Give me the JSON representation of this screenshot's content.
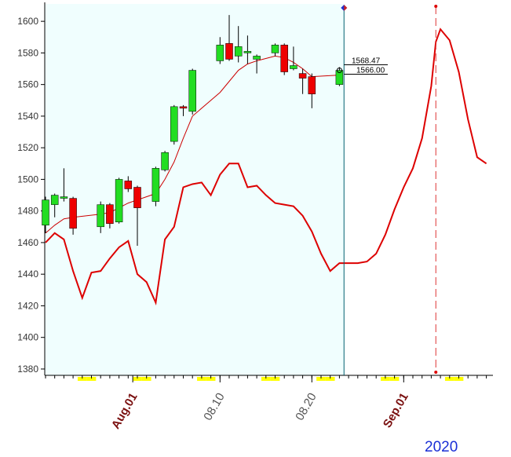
{
  "year_label": "2020",
  "colors": {
    "plot_bg": "#f0fefe",
    "up": "#22dd22",
    "down": "#ee0000",
    "line": "#dd0000",
    "ma": "#cc0000",
    "cursor": "#006070",
    "highlight": "#ffff00",
    "date_label": "#7a1010",
    "day_label": "#555555"
  },
  "chart_data": {
    "type": "candlestick",
    "ylim": [
      1376,
      1611
    ],
    "yticks": [
      1380,
      1400,
      1420,
      1440,
      1460,
      1480,
      1500,
      1520,
      1540,
      1560,
      1580,
      1600
    ],
    "grid": false,
    "x_range": [
      0,
      48
    ],
    "xticks": [
      {
        "label": "Aug.01",
        "x": 9.5,
        "style": "month"
      },
      {
        "label": "08.10",
        "x": 19,
        "style": "day"
      },
      {
        "label": "08.20",
        "x": 29,
        "style": "day"
      },
      {
        "label": "Sep.01",
        "x": 39,
        "style": "month"
      }
    ],
    "highlighted_ticks": [
      4,
      5,
      10,
      11,
      17,
      18,
      24,
      25,
      30,
      31,
      37,
      38,
      44,
      45
    ],
    "cursor_x": 32.5,
    "projection_x": 42.5,
    "value_labels": [
      "1568.47",
      "1566.00"
    ],
    "candles": [
      {
        "x": 0,
        "o": 1471,
        "h": 1489,
        "l": 1466,
        "c": 1487
      },
      {
        "x": 1,
        "o": 1484,
        "h": 1491,
        "l": 1476,
        "c": 1490
      },
      {
        "x": 2,
        "o": 1488,
        "h": 1507,
        "l": 1486,
        "c": 1489
      },
      {
        "x": 3,
        "o": 1488,
        "h": 1489,
        "l": 1465,
        "c": 1469
      },
      {
        "x": 6,
        "o": 1470,
        "h": 1486,
        "l": 1466,
        "c": 1484
      },
      {
        "x": 7,
        "o": 1484,
        "h": 1485,
        "l": 1469,
        "c": 1472
      },
      {
        "x": 8,
        "o": 1473,
        "h": 1501,
        "l": 1472,
        "c": 1500
      },
      {
        "x": 9,
        "o": 1499,
        "h": 1502,
        "l": 1492,
        "c": 1494
      },
      {
        "x": 10,
        "o": 1495,
        "h": 1496,
        "l": 1458,
        "c": 1482
      },
      {
        "x": 12,
        "o": 1486,
        "h": 1508,
        "l": 1483,
        "c": 1507
      },
      {
        "x": 13,
        "o": 1506,
        "h": 1518,
        "l": 1505,
        "c": 1517
      },
      {
        "x": 14,
        "o": 1524,
        "h": 1547,
        "l": 1522,
        "c": 1546
      },
      {
        "x": 15,
        "o": 1546,
        "h": 1547,
        "l": 1540,
        "c": 1545
      },
      {
        "x": 16,
        "o": 1543,
        "h": 1570,
        "l": 1541,
        "c": 1569
      },
      {
        "x": 19,
        "o": 1575,
        "h": 1590,
        "l": 1573,
        "c": 1585
      },
      {
        "x": 20,
        "o": 1586,
        "h": 1604,
        "l": 1575,
        "c": 1576
      },
      {
        "x": 21,
        "o": 1578,
        "h": 1597,
        "l": 1574,
        "c": 1584
      },
      {
        "x": 22,
        "o": 1580,
        "h": 1591,
        "l": 1573,
        "c": 1581
      },
      {
        "x": 23,
        "o": 1576,
        "h": 1579,
        "l": 1567,
        "c": 1578
      },
      {
        "x": 25,
        "o": 1580,
        "h": 1586,
        "l": 1578,
        "c": 1585
      },
      {
        "x": 26,
        "o": 1585,
        "h": 1586,
        "l": 1566,
        "c": 1568
      },
      {
        "x": 27,
        "o": 1570,
        "h": 1584,
        "l": 1569,
        "c": 1572
      },
      {
        "x": 28,
        "o": 1567,
        "h": 1570,
        "l": 1554,
        "c": 1564
      },
      {
        "x": 29,
        "o": 1565,
        "h": 1567,
        "l": 1545,
        "c": 1554
      },
      {
        "x": 32,
        "o": 1560,
        "h": 1571,
        "l": 1559,
        "c": 1569
      }
    ],
    "ma_line": {
      "x": [
        0,
        1,
        2,
        3,
        6,
        7,
        8,
        9,
        10,
        12,
        13,
        14,
        15,
        16,
        19,
        20,
        21,
        22,
        23,
        25,
        26,
        27,
        28,
        29,
        32
      ],
      "y": [
        1466,
        1471,
        1475,
        1476,
        1478,
        1479,
        1482,
        1485,
        1487,
        1491,
        1500,
        1511,
        1526,
        1540,
        1555,
        1562,
        1569,
        1573,
        1575,
        1578,
        1577,
        1574,
        1570,
        1565,
        1566
      ]
    },
    "cycle_line": {
      "x": [
        0,
        1,
        2,
        3,
        4,
        5,
        6,
        7,
        8,
        9,
        10,
        11,
        12,
        13,
        14,
        15,
        16,
        17,
        18,
        19,
        20,
        21,
        22,
        23,
        24,
        25,
        26,
        27,
        28,
        29,
        30,
        31,
        32,
        33,
        34,
        35,
        36,
        37,
        38,
        39,
        40,
        41,
        42,
        42.5,
        43,
        44,
        45,
        46,
        47,
        48
      ],
      "y": [
        1460,
        1466,
        1462,
        1442,
        1425,
        1441,
        1442,
        1450,
        1457,
        1461,
        1440,
        1435,
        1422,
        1462,
        1470,
        1495,
        1497,
        1498,
        1490,
        1503,
        1510,
        1510,
        1495,
        1496,
        1490,
        1485,
        1484,
        1483,
        1477,
        1467,
        1453,
        1442,
        1447,
        1447,
        1447,
        1448,
        1453,
        1465,
        1481,
        1495,
        1507,
        1526,
        1559,
        1587,
        1595,
        1588,
        1568,
        1538,
        1514,
        1510
      ]
    }
  }
}
